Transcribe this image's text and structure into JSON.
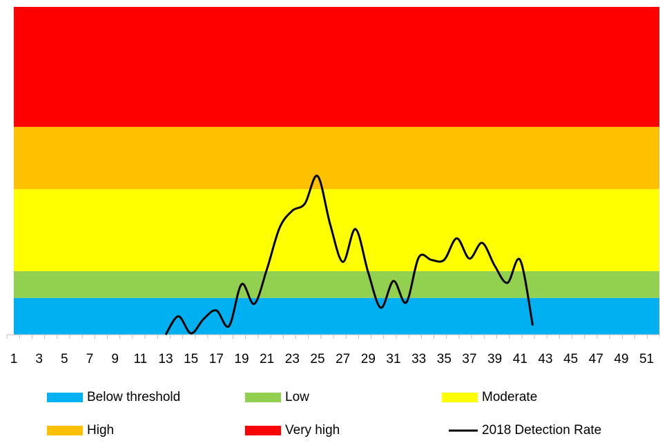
{
  "chart_data": {
    "type": "area",
    "stacked": true,
    "categories": [
      "1",
      null,
      "3",
      null,
      "5",
      null,
      "7",
      null,
      "9",
      null,
      "11",
      null,
      "13",
      null,
      "15",
      null,
      "17",
      null,
      "19",
      null,
      "21",
      null,
      "23",
      null,
      "25",
      null,
      "27",
      null,
      "29",
      null,
      "31",
      null,
      "33",
      null,
      "35",
      null,
      "37",
      null,
      "39",
      null,
      "41",
      null,
      "43",
      null,
      "45",
      null,
      "47",
      null,
      "49",
      null,
      "51",
      null
    ],
    "ylim": [
      0,
      50
    ],
    "series": [
      {
        "name": "Below threshold",
        "color": "#00b0f0",
        "values": [
          5.6,
          5.6,
          5.6,
          5.6,
          5.6,
          5.6,
          5.6,
          5.6,
          5.6,
          5.6,
          5.6,
          5.6,
          5.6,
          5.6,
          5.6,
          5.6,
          5.6,
          5.6,
          5.6,
          5.6,
          5.6,
          5.6,
          5.6,
          5.6,
          5.6,
          5.6,
          5.6,
          5.6,
          5.6,
          5.6,
          5.6,
          5.6,
          5.6,
          5.6,
          5.6,
          5.6,
          5.6,
          5.6,
          5.6,
          5.6,
          5.6,
          5.6,
          5.6,
          5.6,
          5.6,
          5.6,
          5.6,
          5.6,
          5.6,
          5.6,
          5.6,
          5.6
        ]
      },
      {
        "name": "Low",
        "color": "#92d050",
        "values": [
          4.1,
          4.1,
          4.1,
          4.1,
          4.1,
          4.1,
          4.1,
          4.1,
          4.1,
          4.1,
          4.1,
          4.1,
          4.1,
          4.1,
          4.1,
          4.1,
          4.1,
          4.1,
          4.1,
          4.1,
          4.1,
          4.1,
          4.1,
          4.1,
          4.1,
          4.1,
          4.1,
          4.1,
          4.1,
          4.1,
          4.1,
          4.1,
          4.1,
          4.1,
          4.1,
          4.1,
          4.1,
          4.1,
          4.1,
          4.1,
          4.1,
          4.1,
          4.1,
          4.1,
          4.1,
          4.1,
          4.1,
          4.1,
          4.1,
          4.1,
          4.1,
          4.1
        ]
      },
      {
        "name": "Moderate",
        "color": "#ffff00",
        "values": [
          12.5,
          12.5,
          12.5,
          12.5,
          12.5,
          12.5,
          12.5,
          12.5,
          12.5,
          12.5,
          12.5,
          12.5,
          12.5,
          12.5,
          12.5,
          12.5,
          12.5,
          12.5,
          12.5,
          12.5,
          12.5,
          12.5,
          12.5,
          12.5,
          12.5,
          12.5,
          12.5,
          12.5,
          12.5,
          12.5,
          12.5,
          12.5,
          12.5,
          12.5,
          12.5,
          12.5,
          12.5,
          12.5,
          12.5,
          12.5,
          12.5,
          12.5,
          12.5,
          12.5,
          12.5,
          12.5,
          12.5,
          12.5,
          12.5,
          12.5,
          12.5,
          12.5
        ]
      },
      {
        "name": "High",
        "color": "#ffc000",
        "values": [
          9.5,
          9.5,
          9.5,
          9.5,
          9.5,
          9.5,
          9.5,
          9.5,
          9.5,
          9.5,
          9.5,
          9.5,
          9.5,
          9.5,
          9.5,
          9.5,
          9.5,
          9.5,
          9.5,
          9.5,
          9.5,
          9.5,
          9.5,
          9.5,
          9.5,
          9.5,
          9.5,
          9.5,
          9.5,
          9.5,
          9.5,
          9.5,
          9.5,
          9.5,
          9.5,
          9.5,
          9.5,
          9.5,
          9.5,
          9.5,
          9.5,
          9.5,
          9.5,
          9.5,
          9.5,
          9.5,
          9.5,
          9.5,
          9.5,
          9.5,
          9.5,
          9.5
        ]
      },
      {
        "name": "Very high",
        "color": "#ff0000",
        "values": [
          18.3,
          18.3,
          18.3,
          18.3,
          18.3,
          18.3,
          18.3,
          18.3,
          18.3,
          18.3,
          18.3,
          18.3,
          18.3,
          18.3,
          18.3,
          18.3,
          18.3,
          18.3,
          18.3,
          18.3,
          18.3,
          18.3,
          18.3,
          18.3,
          18.3,
          18.3,
          18.3,
          18.3,
          18.3,
          18.3,
          18.3,
          18.3,
          18.3,
          18.3,
          18.3,
          18.3,
          18.3,
          18.3,
          18.3,
          18.3,
          18.3,
          18.3,
          18.3,
          18.3,
          18.3,
          18.3,
          18.3,
          18.3,
          18.3,
          18.3,
          18.3,
          18.3
        ]
      },
      {
        "name": "2018 Detection Rate",
        "type": "line",
        "color": "#000000",
        "values": [
          null,
          null,
          null,
          null,
          null,
          null,
          null,
          null,
          null,
          null,
          null,
          null,
          0,
          2.8,
          0.2,
          2.4,
          3.7,
          1.3,
          7.7,
          4.7,
          10,
          16.3,
          18.9,
          20,
          24.2,
          16.8,
          11.1,
          16.1,
          9.5,
          4.1,
          8.2,
          4.9,
          11.8,
          11.4,
          11.4,
          14.7,
          11.6,
          14,
          10.5,
          7.9,
          11.4,
          1.4,
          null,
          null,
          null,
          null,
          null,
          null,
          null,
          null,
          null,
          null
        ]
      }
    ]
  }
}
